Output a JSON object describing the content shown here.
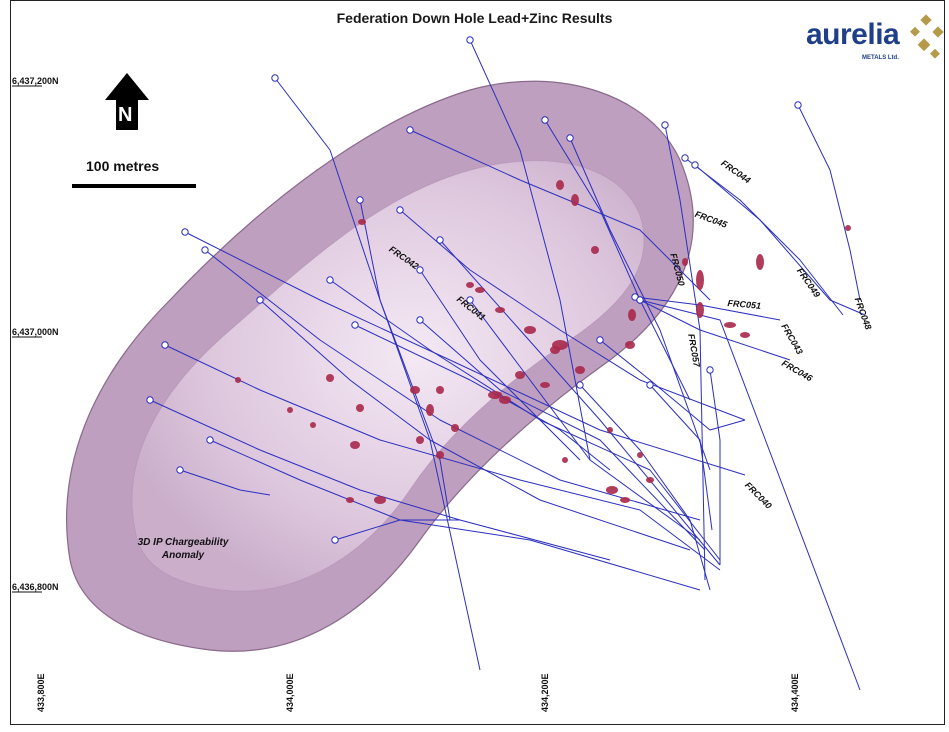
{
  "title": "Federation Down Hole Lead+Zinc Results",
  "logo": {
    "word": "aurelia",
    "sub": "METALS Ltd.",
    "brand_color": "#1f3f88",
    "mark_color": "#b59a4a"
  },
  "north_arrow": {
    "letter": "N"
  },
  "scale_bar": {
    "label": "100 metres"
  },
  "northings": [
    "6,437,200N",
    "6,437,000N",
    "6,436,800N"
  ],
  "eastings": [
    "433,800E",
    "434,000E",
    "434,200E",
    "434,400E"
  ],
  "anomaly_label": {
    "line1": "3D IP Chargeability",
    "line2": "Anomaly"
  },
  "hole_labels": [
    "FRC044",
    "FRC045",
    "FRC042",
    "FRC050",
    "FRC049",
    "FRC048",
    "FRC041",
    "FRC051",
    "FRC043",
    "FRC057",
    "FRC046",
    "FRC040"
  ],
  "colors": {
    "trace": "#2b2fbf",
    "intercept": "#a8284a",
    "anomaly": "#c8a9c8"
  }
}
